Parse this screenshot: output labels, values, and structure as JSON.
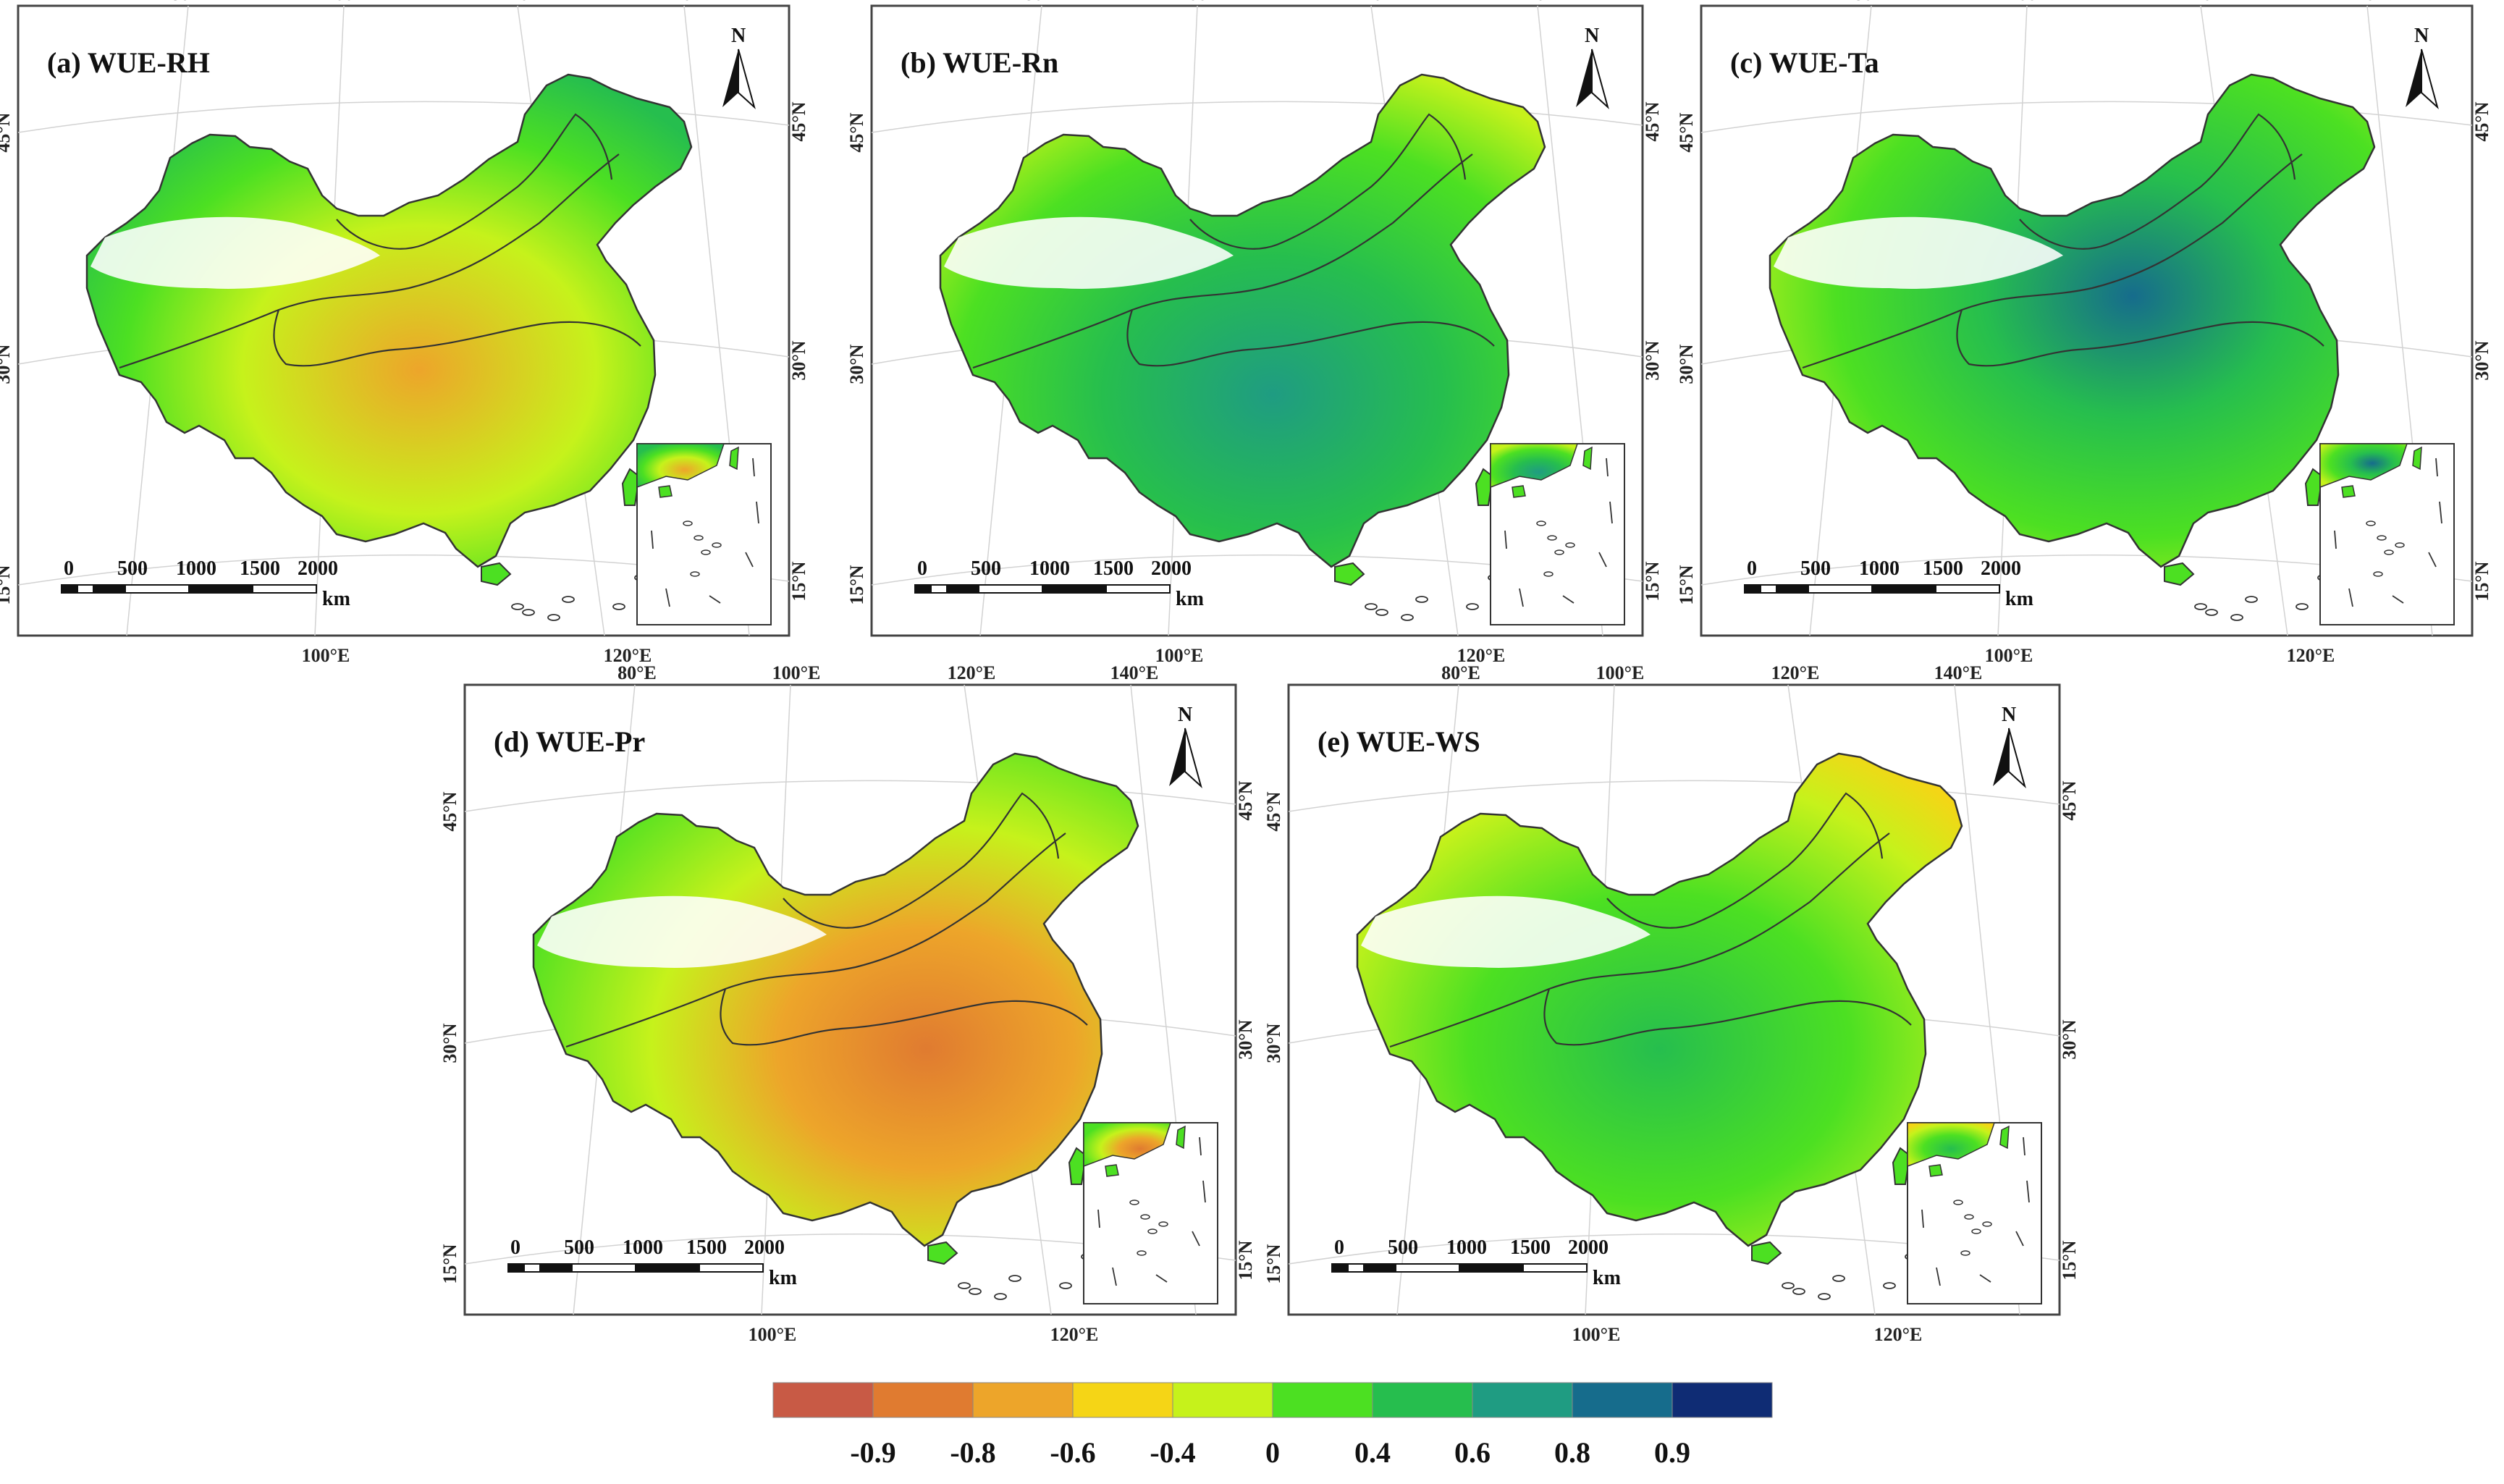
{
  "figure": {
    "panels": [
      {
        "id": "a",
        "title": "(a) WUE-RH"
      },
      {
        "id": "b",
        "title": "(b) WUE-Rn"
      },
      {
        "id": "c",
        "title": "(c) WUE-Ta"
      },
      {
        "id": "d",
        "title": "(d) WUE-Pr"
      },
      {
        "id": "e",
        "title": "(e) WUE-WS"
      }
    ],
    "axis_labels": {
      "top": [
        "80°E",
        "100°E",
        "120°E",
        "140°E"
      ],
      "bottom": [
        "100°E",
        "120°E"
      ],
      "left": [
        "45°N",
        "30°N",
        "15°N"
      ],
      "right": [
        "45°N",
        "30°N",
        "15°N"
      ]
    },
    "north_arrow_letter": "N",
    "scale_bar": {
      "ticks": [
        "0",
        "500",
        "1000",
        "1500",
        "2000"
      ],
      "unit": "km"
    },
    "legend": {
      "colors": [
        "#c85a45",
        "#e07b30",
        "#eda52a",
        "#f5d516",
        "#c6f21b",
        "#4ce022",
        "#26be4e",
        "#1f9c82",
        "#166c8c",
        "#0f2c74"
      ],
      "labels": [
        "-0.9",
        "-0.8",
        "-0.6",
        "-0.4",
        "0",
        "0.4",
        "0.6",
        "0.8",
        "0.9"
      ]
    }
  }
}
